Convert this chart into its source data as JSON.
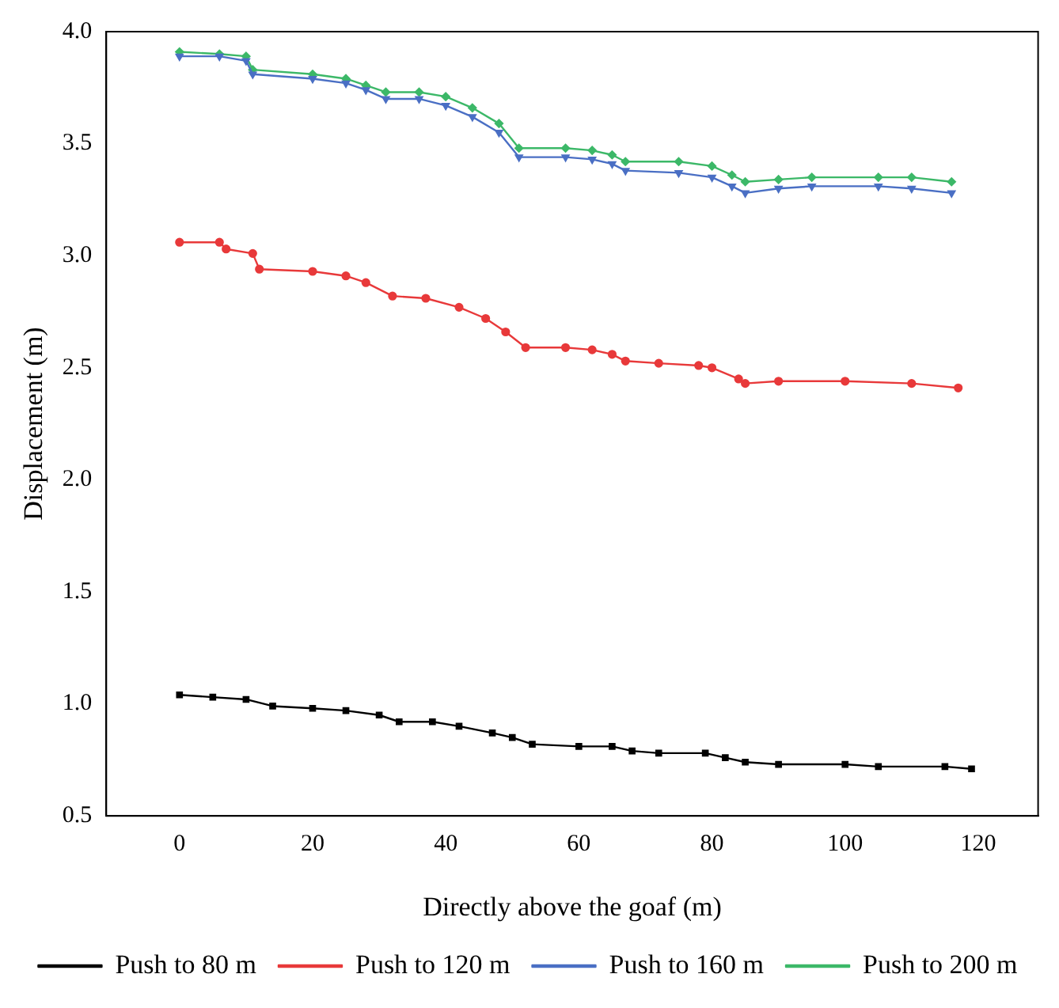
{
  "chart_data": {
    "type": "line",
    "xlabel": "Directly above the goaf (m)",
    "ylabel": "Displacement (m)",
    "xlim": [
      -11,
      129
    ],
    "xticks": [
      0,
      20,
      40,
      60,
      80,
      100,
      120
    ],
    "ylim": [
      0.5,
      4.0
    ],
    "yticks": [
      0.5,
      {
        "value": 1,
        "label": "1.0"
      },
      1.5,
      {
        "value": 2,
        "label": "2.0"
      },
      2.5,
      {
        "value": 3,
        "label": "3.0"
      },
      3.5,
      {
        "value": 4,
        "label": "4.0"
      }
    ],
    "grid": false,
    "legend": "bottom",
    "line_style": "solid",
    "series": [
      {
        "name": "Push to 80 m",
        "color": "#000000",
        "marker": "square",
        "x": [
          0,
          5,
          10,
          14,
          20,
          25,
          30,
          33,
          38,
          42,
          47,
          50,
          53,
          60,
          65,
          68,
          72,
          79,
          82,
          85,
          90,
          100,
          105,
          115,
          119
        ],
        "values": [
          1.04,
          1.03,
          1.02,
          0.99,
          0.98,
          0.97,
          0.95,
          0.92,
          0.92,
          0.9,
          0.87,
          0.85,
          0.82,
          0.81,
          0.81,
          0.79,
          0.78,
          0.78,
          0.76,
          0.74,
          0.73,
          0.73,
          0.72,
          0.72,
          0.71
        ]
      },
      {
        "name": "Push to 120 m",
        "color": "#e8393a",
        "marker": "circle",
        "x": [
          0,
          6,
          7,
          11,
          12,
          20,
          25,
          28,
          32,
          37,
          42,
          46,
          49,
          52,
          58,
          62,
          65,
          67,
          72,
          78,
          80,
          84,
          85,
          90,
          100,
          110,
          117
        ],
        "values": [
          3.06,
          3.06,
          3.03,
          3.01,
          2.94,
          2.93,
          2.91,
          2.88,
          2.82,
          2.81,
          2.77,
          2.72,
          2.66,
          2.59,
          2.59,
          2.58,
          2.56,
          2.53,
          2.52,
          2.51,
          2.5,
          2.45,
          2.43,
          2.44,
          2.44,
          2.43,
          2.41
        ]
      },
      {
        "name": "Push to 160 m",
        "color": "#4a6fc4",
        "marker": "triangle",
        "x": [
          0,
          6,
          10,
          11,
          20,
          25,
          28,
          31,
          36,
          40,
          44,
          48,
          51,
          58,
          62,
          65,
          67,
          75,
          80,
          83,
          85,
          90,
          95,
          105,
          110,
          116
        ],
        "values": [
          3.89,
          3.89,
          3.87,
          3.81,
          3.79,
          3.77,
          3.74,
          3.7,
          3.7,
          3.67,
          3.62,
          3.55,
          3.44,
          3.44,
          3.43,
          3.41,
          3.38,
          3.37,
          3.35,
          3.31,
          3.28,
          3.3,
          3.31,
          3.31,
          3.3,
          3.28
        ]
      },
      {
        "name": "Push to 200 m",
        "color": "#3cb868",
        "marker": "diamond",
        "x": [
          0,
          6,
          10,
          11,
          20,
          25,
          28,
          31,
          36,
          40,
          44,
          48,
          51,
          58,
          62,
          65,
          67,
          75,
          80,
          83,
          85,
          90,
          95,
          105,
          110,
          116
        ],
        "values": [
          3.91,
          3.9,
          3.89,
          3.83,
          3.81,
          3.79,
          3.76,
          3.73,
          3.73,
          3.71,
          3.66,
          3.59,
          3.48,
          3.48,
          3.47,
          3.45,
          3.42,
          3.42,
          3.4,
          3.36,
          3.33,
          3.34,
          3.35,
          3.35,
          3.35,
          3.33
        ]
      }
    ]
  }
}
